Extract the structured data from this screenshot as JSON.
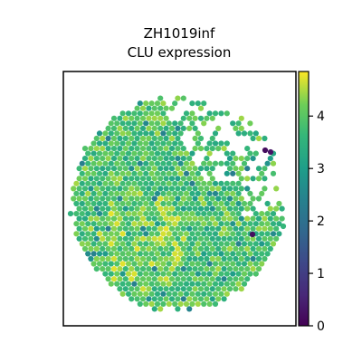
{
  "chart_data": {
    "type": "scatter",
    "title": "ZH1019inf",
    "subtitle": "CLU expression",
    "xlabel": "",
    "ylabel": "",
    "colorbar": {
      "colormap": "viridis",
      "range": [
        0,
        4.85
      ],
      "ticks": [
        "0",
        "1",
        "2",
        "3",
        "4"
      ]
    },
    "colors": {
      "low": "#440154",
      "mid": "#21918c",
      "high": "#fde725"
    },
    "notes_visible": "hexagonal spatial spots; most values between 3 and 4.5; a few outliers near 0"
  }
}
